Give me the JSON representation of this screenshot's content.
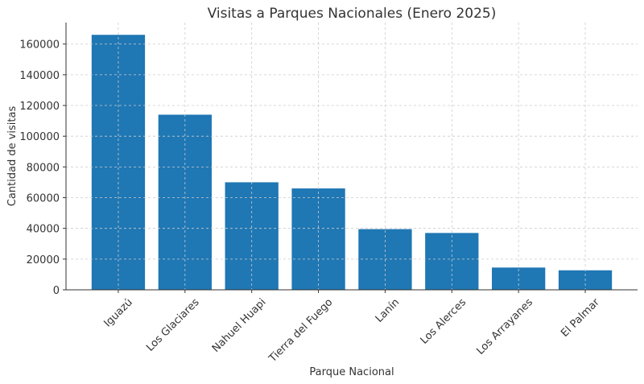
{
  "chart_data": {
    "type": "bar",
    "title": "Visitas a Parques Nacionales (Enero 2025)",
    "x_label": "Parque Nacional",
    "y_label": "Cantidad de visitas",
    "categories": [
      "Iguazú",
      "Los Glaciares",
      "Nahuel Huapi",
      "Tierra del Fuego",
      "Lanín",
      "Los Alerces",
      "Los Arrayanes",
      "El Palmar"
    ],
    "values": [
      166000,
      114000,
      70000,
      66000,
      39500,
      37000,
      14500,
      12700
    ],
    "color": "#1f77b4",
    "ylim": [
      0,
      174000
    ],
    "yticks": [
      0,
      20000,
      40000,
      60000,
      80000,
      100000,
      120000,
      140000,
      160000
    ],
    "grid": true
  }
}
